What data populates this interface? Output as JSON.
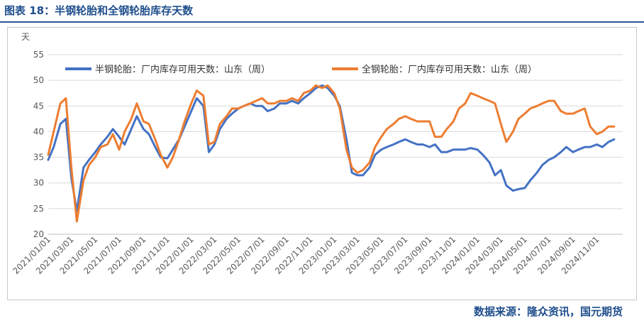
{
  "figure_title": "图表 18：半钢轮胎和全钢轮胎库存天数",
  "source": "数据来源：隆众资讯，国元期货",
  "colors": {
    "series1": "#4472c4",
    "series2": "#ed7d31",
    "title": "#1f4e8c",
    "grid": "#d9d9d9"
  },
  "chart_data": {
    "type": "line",
    "ylabel": "天",
    "ylim": [
      20,
      55
    ],
    "yticks": [
      "20",
      "25",
      "30",
      "35",
      "40",
      "45",
      "50",
      "55"
    ],
    "grid": "horizontal",
    "legend": "top",
    "x_tick_labels": [
      "2021/01/01",
      "2021/03/01",
      "2021/05/01",
      "2021/07/01",
      "2021/09/01",
      "2021/11/01",
      "2022/01/01",
      "2022/03/01",
      "2022/05/01",
      "2022/07/01",
      "2022/09/01",
      "2022/11/01",
      "2023/01/01",
      "2023/03/01",
      "2023/05/01",
      "2023/07/01",
      "2023/09/01",
      "2023/11/01",
      "2024/01/01",
      "2024/03/01",
      "2024/05/01",
      "2024/07/01",
      "2024/09/01",
      "2024/11/01"
    ],
    "x": [
      "2021/01/01",
      "2021/01/15",
      "2021/02/01",
      "2021/02/15",
      "2021/03/01",
      "2021/03/15",
      "2021/04/01",
      "2021/04/15",
      "2021/05/01",
      "2021/05/15",
      "2021/06/01",
      "2021/06/15",
      "2021/07/01",
      "2021/07/15",
      "2021/08/01",
      "2021/08/15",
      "2021/09/01",
      "2021/09/15",
      "2021/10/01",
      "2021/10/15",
      "2021/11/01",
      "2021/11/15",
      "2021/12/01",
      "2021/12/15",
      "2022/01/01",
      "2022/01/15",
      "2022/02/01",
      "2022/02/15",
      "2022/03/01",
      "2022/03/15",
      "2022/04/01",
      "2022/04/15",
      "2022/05/01",
      "2022/05/15",
      "2022/06/01",
      "2022/06/15",
      "2022/07/01",
      "2022/07/15",
      "2022/08/01",
      "2022/08/15",
      "2022/09/01",
      "2022/09/15",
      "2022/10/01",
      "2022/10/15",
      "2022/11/01",
      "2022/11/15",
      "2022/12/01",
      "2022/12/15",
      "2023/01/01",
      "2023/01/15",
      "2023/02/01",
      "2023/02/15",
      "2023/03/01",
      "2023/03/15",
      "2023/04/01",
      "2023/04/15",
      "2023/05/01",
      "2023/05/15",
      "2023/06/01",
      "2023/06/15",
      "2023/07/01",
      "2023/07/15",
      "2023/08/01",
      "2023/08/15",
      "2023/09/01",
      "2023/09/15",
      "2023/10/01",
      "2023/10/15",
      "2023/11/01",
      "2023/11/15",
      "2023/12/01",
      "2023/12/15",
      "2024/01/01",
      "2024/01/15",
      "2024/02/01",
      "2024/02/15",
      "2024/03/01",
      "2024/03/15",
      "2024/04/01",
      "2024/04/15",
      "2024/05/01",
      "2024/05/15",
      "2024/06/01",
      "2024/06/15",
      "2024/07/01",
      "2024/07/15",
      "2024/08/01",
      "2024/08/15",
      "2024/09/01",
      "2024/09/15",
      "2024/10/01",
      "2024/10/15",
      "2024/11/01",
      "2024/11/15",
      "2024/12/01",
      "2024/12/15"
    ],
    "series": [
      {
        "name": "半钢轮胎：厂内库存可用天数：山东（周）",
        "color": "#4472c4",
        "values": [
          34.5,
          37.0,
          41.5,
          42.5,
          31.0,
          24.5,
          33.0,
          34.5,
          36.0,
          37.5,
          39.0,
          40.5,
          39.0,
          37.5,
          40.5,
          43.0,
          40.5,
          39.5,
          37.0,
          35.0,
          34.8,
          36.5,
          38.5,
          41.0,
          44.0,
          46.5,
          45.0,
          36.0,
          37.5,
          40.5,
          42.5,
          43.5,
          44.5,
          45.0,
          45.5,
          45.0,
          45.0,
          44.0,
          44.5,
          45.5,
          45.5,
          46.0,
          45.5,
          46.5,
          47.5,
          48.5,
          49.0,
          48.5,
          47.0,
          45.0,
          38.5,
          32.0,
          31.5,
          31.5,
          33.0,
          35.5,
          36.5,
          37.0,
          37.5,
          38.0,
          38.5,
          38.0,
          37.5,
          37.5,
          37.0,
          37.5,
          36.0,
          36.0,
          36.5,
          36.5,
          36.5,
          36.8,
          36.5,
          35.5,
          34.0,
          31.5,
          32.5,
          29.5,
          28.5,
          28.8,
          29.0,
          30.5,
          32.0,
          33.5,
          34.5,
          35.0,
          36.0,
          37.0,
          36.0,
          36.5,
          37.0,
          37.0,
          37.5,
          37.0,
          38.0,
          38.5
        ]
      },
      {
        "name": "全钢轮胎：厂内库存可用天数：山东（周）",
        "color": "#ed7d31",
        "values": [
          35.5,
          40.0,
          45.5,
          46.5,
          33.0,
          22.5,
          30.5,
          33.5,
          35.0,
          37.0,
          37.5,
          39.5,
          36.5,
          40.0,
          42.5,
          45.5,
          42.0,
          41.5,
          38.5,
          35.5,
          33.0,
          35.0,
          38.5,
          42.0,
          45.5,
          48.0,
          47.0,
          37.5,
          38.0,
          41.5,
          43.0,
          44.5,
          44.5,
          45.0,
          45.5,
          46.0,
          46.5,
          45.5,
          45.5,
          46.0,
          46.0,
          46.5,
          46.0,
          47.5,
          48.0,
          49.0,
          48.5,
          49.0,
          47.5,
          44.5,
          36.5,
          33.0,
          32.0,
          32.5,
          34.0,
          37.0,
          39.0,
          40.5,
          41.5,
          42.5,
          43.0,
          42.5,
          42.0,
          42.0,
          42.0,
          39.0,
          39.0,
          40.5,
          42.0,
          44.5,
          45.5,
          47.5,
          47.0,
          46.5,
          46.0,
          45.5,
          41.5,
          38.0,
          40.0,
          42.5,
          43.5,
          44.5,
          45.0,
          45.5,
          46.0,
          46.0,
          44.0,
          43.5,
          43.5,
          44.0,
          44.5,
          41.0,
          39.5,
          40.0,
          41.0,
          41.0
        ]
      }
    ]
  }
}
